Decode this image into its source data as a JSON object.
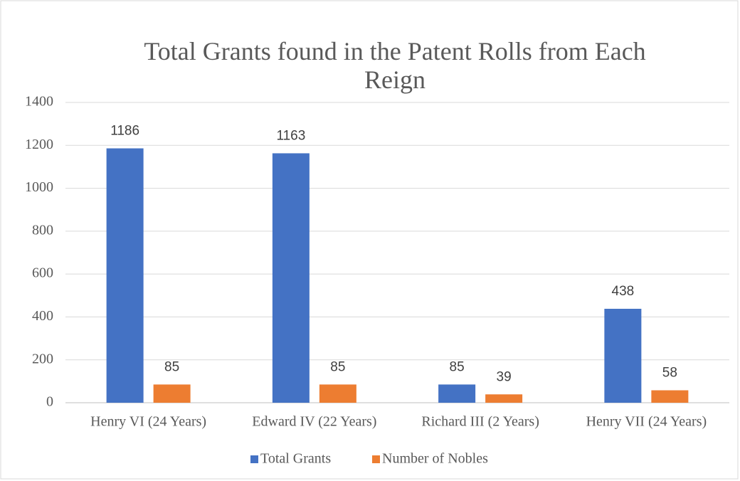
{
  "chart_data": {
    "type": "bar",
    "title": "Total Grants found in the Patent Rolls from Each Reign",
    "categories": [
      "Henry VI (24 Years)",
      "Edward IV (22 Years)",
      "Richard III (2 Years)",
      "Henry VII (24 Years)"
    ],
    "series": [
      {
        "name": "Total Grants",
        "color": "#4472c4",
        "values": [
          1186,
          1163,
          85,
          438
        ]
      },
      {
        "name": "Number of Nobles",
        "color": "#ed7d31",
        "values": [
          85,
          85,
          39,
          58
        ]
      }
    ],
    "ylim": [
      0,
      1400
    ],
    "yticks": [
      0,
      200,
      400,
      600,
      800,
      1000,
      1200,
      1400
    ],
    "grid": true,
    "legend": "bottom"
  }
}
